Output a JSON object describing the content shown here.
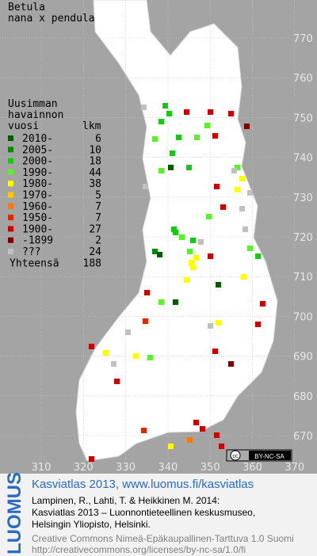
{
  "title": [
    "Betula",
    "nana x pendula"
  ],
  "legend": {
    "heading": [
      "Uusimman",
      "havainnon",
      "vuosi"
    ],
    "count_heading": "lkm",
    "entries": [
      {
        "label": "2010-",
        "count": 6,
        "color": "#005a00"
      },
      {
        "label": "2005-",
        "count": 10,
        "color": "#008c00"
      },
      {
        "label": "2000-",
        "count": 18,
        "color": "#18c818"
      },
      {
        "label": "1990-",
        "count": 44,
        "color": "#5cf02c"
      },
      {
        "label": "1980-",
        "count": 38,
        "color": "#ffff00"
      },
      {
        "label": "1970-",
        "count": 5,
        "color": "#ffc800"
      },
      {
        "label": "1960-",
        "count": 7,
        "color": "#ff7800"
      },
      {
        "label": "1950-",
        "count": 7,
        "color": "#e02800"
      },
      {
        "label": "1900-",
        "count": 27,
        "color": "#c80000"
      },
      {
        "label": "-1899",
        "count": 2,
        "color": "#780000"
      },
      {
        "label": "???",
        "count": 24,
        "color": "#c0c0c0"
      }
    ],
    "total": {
      "label": "Yhteensä",
      "count": 188
    }
  },
  "grid": {
    "x_labels": [
      310,
      320,
      330,
      340,
      350,
      360,
      370
    ],
    "y_labels": [
      670,
      680,
      690,
      700,
      710,
      720,
      730,
      740,
      750,
      760,
      770
    ]
  },
  "badge": {
    "cc": "cc",
    "license": "BY-NC-SA"
  },
  "footer": {
    "logo": "LUOMUS",
    "headline": "Kasviatlas 2013, www.luomus.fi/kasviatlas",
    "citation": [
      "Lampinen, R., Lahti, T. & Heikkinen M. 2014:",
      "Kasviatlas 2013 – Luonnontieteellinen keskusmuseo,",
      "Helsingin Yliopisto, Helsinki."
    ],
    "license": [
      "Creative Commons Nimeä-Epäkaupallinen-Tarttuva 1.0 Suomi",
      "http://creativecommons.org/licenses/by-nc-sa/1.0/fi"
    ]
  }
}
